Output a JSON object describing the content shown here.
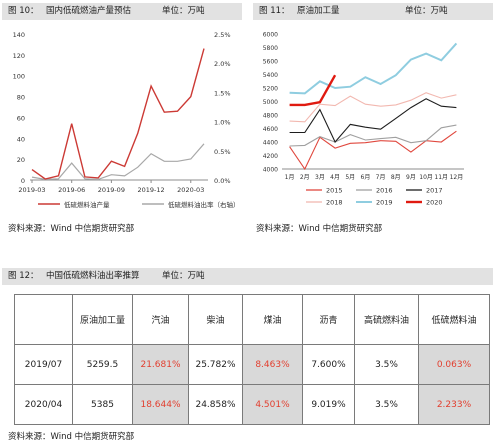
{
  "figures": {
    "fig10": {
      "num": "图 10：",
      "title": "国内低硫燃油产量预估",
      "unit": "单位：万吨"
    },
    "fig11": {
      "num": "图 11：",
      "title": "原油加工量",
      "unit": "单位：万吨"
    },
    "fig12": {
      "num": "图 12：",
      "title": "中国低硫燃料油出率推算",
      "unit": "单位：万吨"
    }
  },
  "source": "资料来源：Wind   中信期货研究部",
  "chart_data": [
    {
      "type": "line",
      "x_tick_labels": [
        "2019-03",
        "2019-06",
        "2019-09",
        "2019-12",
        "2020-03"
      ],
      "x": [
        "2019-03",
        "2019-04",
        "2019-05",
        "2019-06",
        "2019-07",
        "2019-08",
        "2019-09",
        "2019-10",
        "2019-11",
        "2019-12",
        "2020-01",
        "2020-02",
        "2020-03",
        "2020-04"
      ],
      "ylim_left": [
        0,
        140
      ],
      "y_ticks_left": [
        0,
        20,
        40,
        60,
        80,
        100,
        120,
        140
      ],
      "ylim_right": [
        0,
        0.025
      ],
      "y_ticks_right": [
        "0.0%",
        "0.5%",
        "1.0%",
        "1.5%",
        "2.0%",
        "2.5%"
      ],
      "series": [
        {
          "name": "低硫燃料油产量",
          "axis": "left",
          "color": "#cc3a35",
          "values": [
            10,
            1,
            4,
            54,
            3,
            2,
            18,
            13,
            45,
            90,
            65,
            66,
            80,
            126
          ]
        },
        {
          "name": "低硫燃料油出率（右轴）",
          "axis": "right",
          "color": "#a8a8a8",
          "values": [
            0.0005,
            0.0001,
            0.0002,
            0.0029,
            0.0002,
            0.0001,
            0.0009,
            0.0007,
            0.0022,
            0.0045,
            0.0032,
            0.0032,
            0.0036,
            0.0062
          ]
        }
      ]
    },
    {
      "type": "line",
      "categories": [
        "1月",
        "2月",
        "3月",
        "4月",
        "5月",
        "6月",
        "7月",
        "8月",
        "9月",
        "10月",
        "11月",
        "12月"
      ],
      "ylim": [
        4000,
        6000
      ],
      "y_ticks": [
        4000,
        4200,
        4400,
        4600,
        4800,
        5000,
        5200,
        5400,
        5600,
        5800,
        6000
      ],
      "series": [
        {
          "name": "2015",
          "color": "#e0483e",
          "values": [
            4330,
            4000,
            4470,
            4310,
            4380,
            4390,
            4420,
            4410,
            4250,
            4420,
            4400,
            4560
          ]
        },
        {
          "name": "2016",
          "color": "#a0a0a0",
          "values": [
            4340,
            4350,
            4480,
            4400,
            4510,
            4430,
            4450,
            4470,
            4390,
            4420,
            4610,
            4650
          ]
        },
        {
          "name": "2017",
          "color": "#1e1e1e",
          "values": [
            4540,
            4540,
            4880,
            4400,
            4660,
            4620,
            4590,
            4750,
            4910,
            5040,
            4930,
            4910
          ]
        },
        {
          "name": "2018",
          "color": "#f2b8b0",
          "values": [
            4710,
            4700,
            4960,
            4940,
            5080,
            4960,
            4930,
            4950,
            5020,
            5130,
            5050,
            5100
          ]
        },
        {
          "name": "2019",
          "color": "#8fcde0",
          "values": [
            5130,
            5120,
            5300,
            5200,
            5220,
            5360,
            5260,
            5390,
            5620,
            5710,
            5610,
            5860
          ]
        },
        {
          "name": "2020",
          "color": "#e01a10",
          "values": [
            4950,
            4950,
            4990,
            5390,
            null,
            null,
            null,
            null,
            null,
            null,
            null,
            null
          ]
        }
      ]
    },
    {
      "type": "table",
      "columns": [
        "",
        "原油加工量",
        "汽油",
        "柴油",
        "煤油",
        "沥青",
        "高硫燃料油",
        "低硫燃料油"
      ],
      "rows": [
        [
          "2019/07",
          "5259.5",
          "21.681%",
          "25.782%",
          "8.463%",
          "7.600%",
          "3.5%",
          "0.063%"
        ],
        [
          "2020/04",
          "5385",
          "18.644%",
          "24.858%",
          "4.501%",
          "9.019%",
          "3.5%",
          "2.233%"
        ]
      ],
      "highlighted_columns": [
        "汽油",
        "煤油",
        "低硫燃料油"
      ]
    }
  ]
}
